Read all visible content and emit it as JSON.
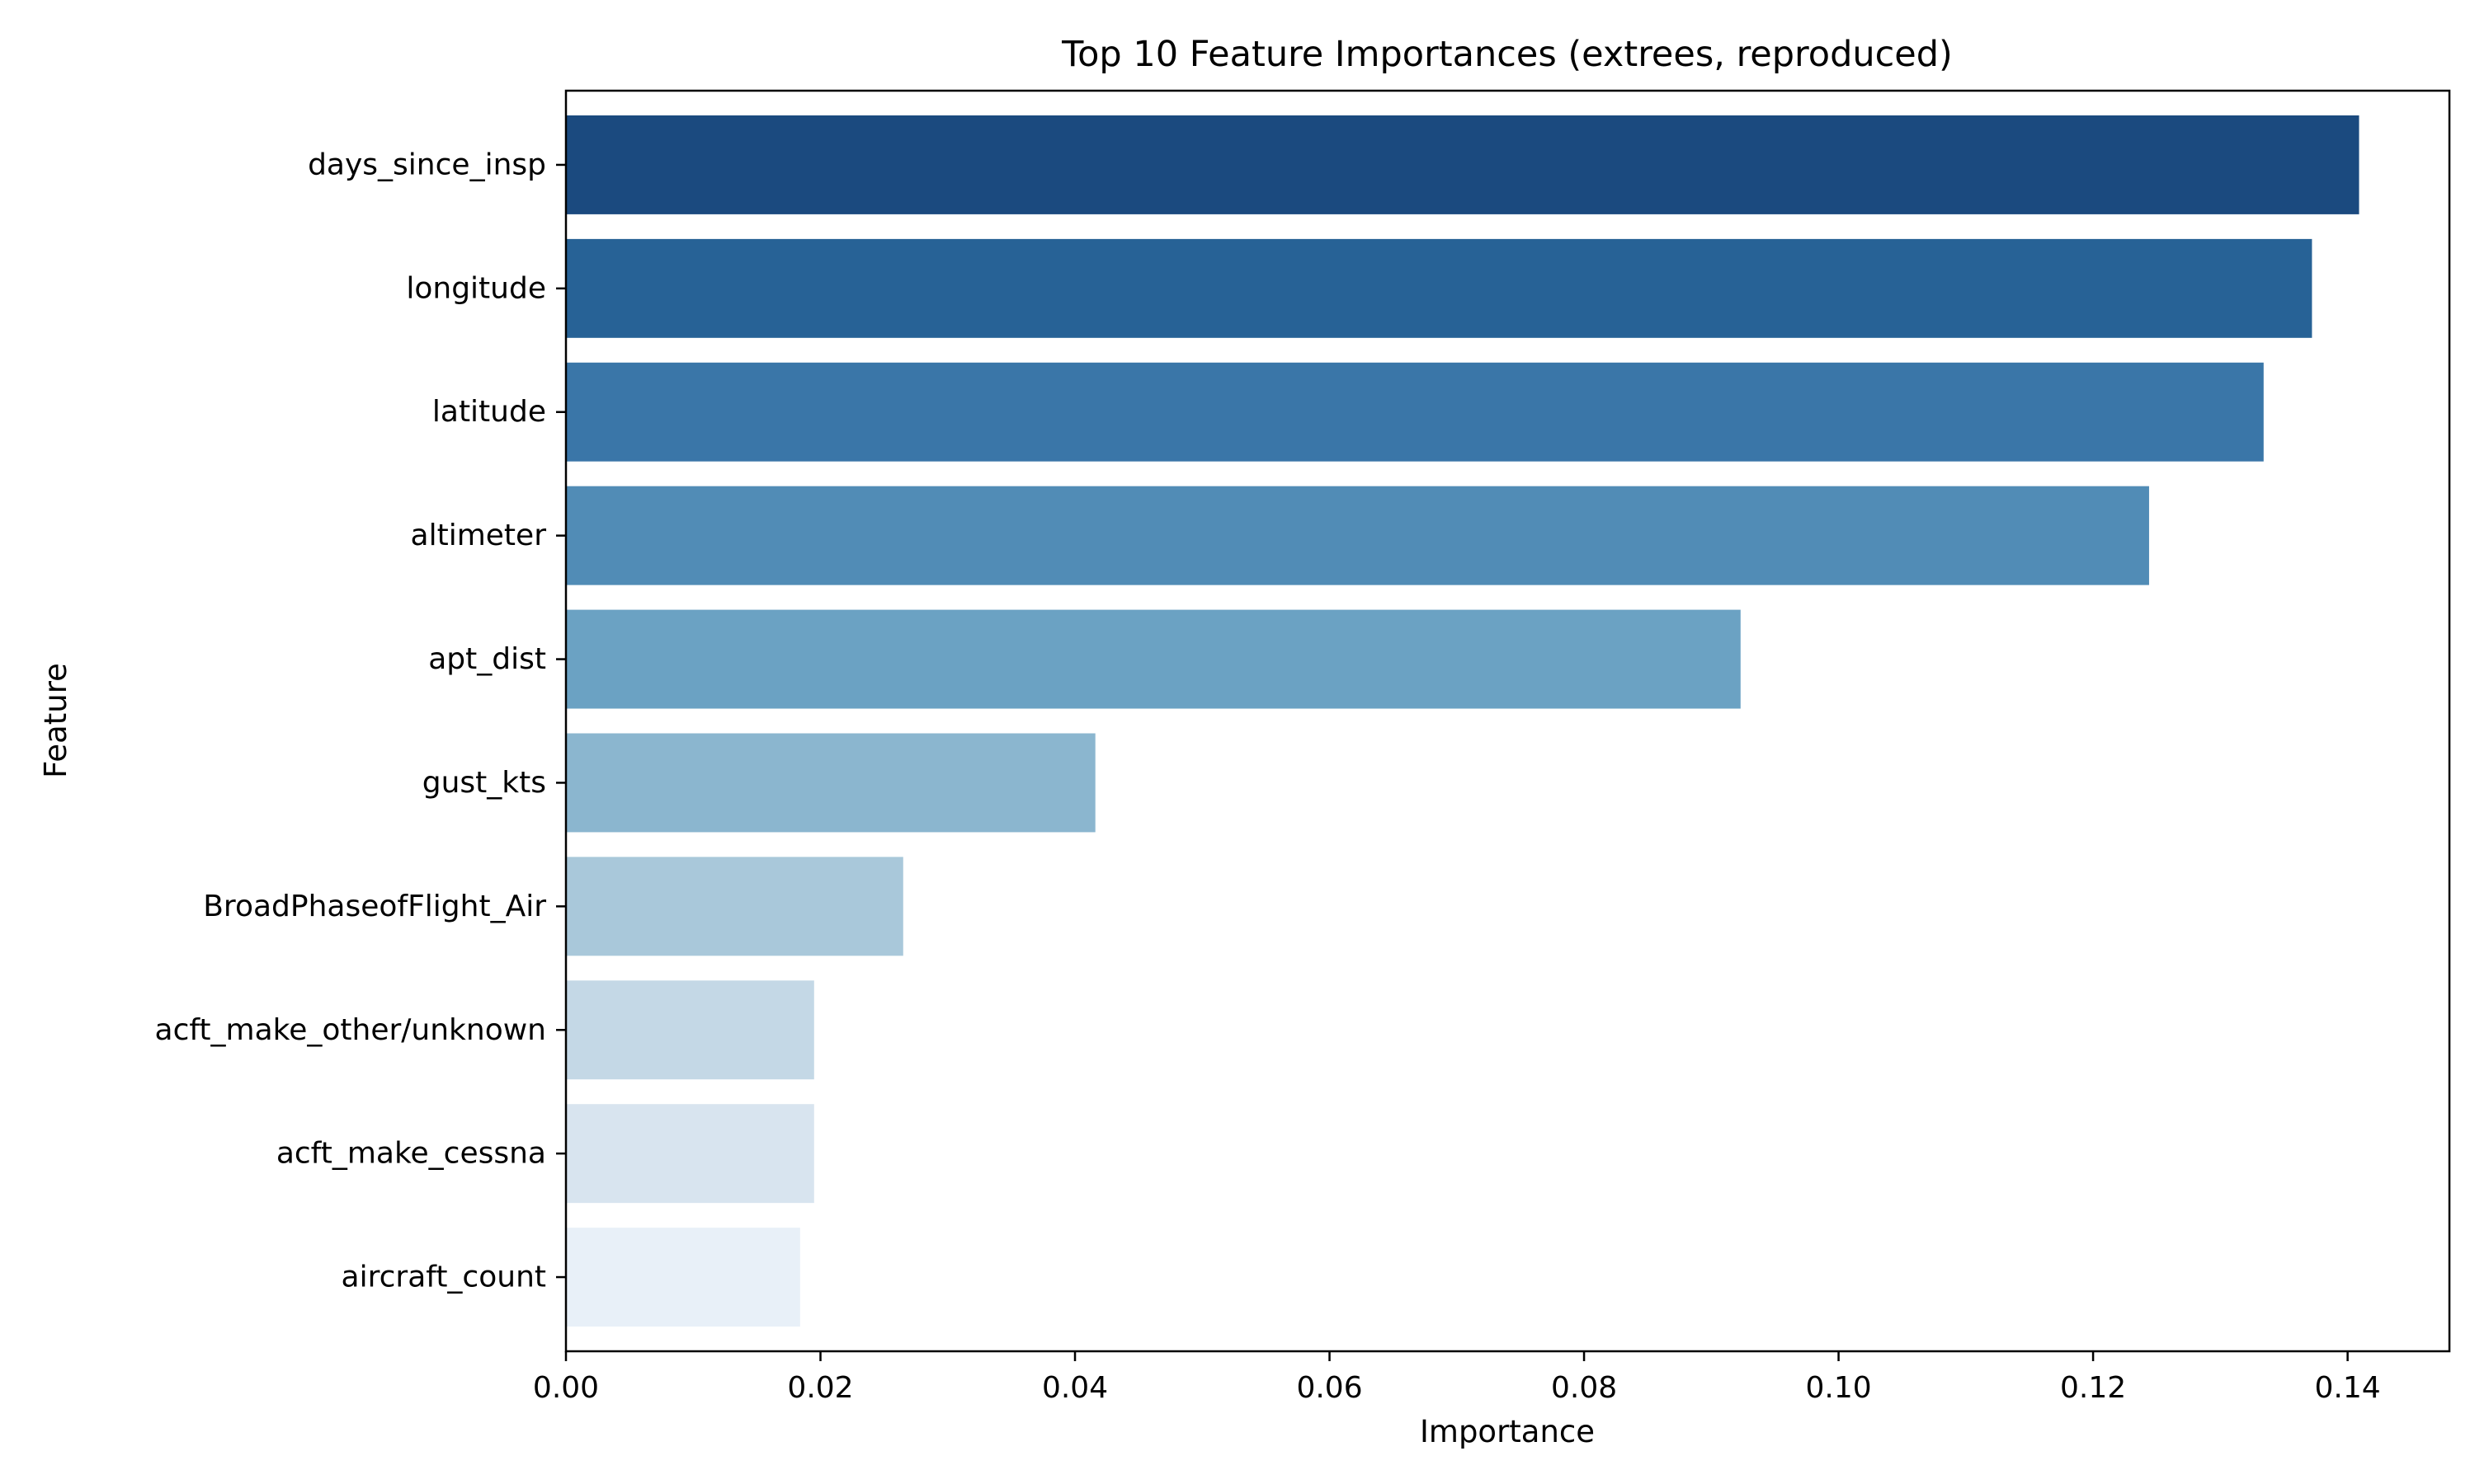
{
  "chart_data": {
    "type": "bar",
    "orientation": "horizontal",
    "title": "Top 10 Feature Importances (extrees, reproduced)",
    "xlabel": "Importance",
    "ylabel": "Feature",
    "xlim": [
      0,
      0.148
    ],
    "xticks": [
      0.0,
      0.02,
      0.04,
      0.06,
      0.08,
      0.1,
      0.12,
      0.14
    ],
    "xtick_labels": [
      "0.00",
      "0.02",
      "0.04",
      "0.06",
      "0.08",
      "0.10",
      "0.12",
      "0.14"
    ],
    "grid": false,
    "legend": null,
    "categories": [
      "days_since_insp",
      "longitude",
      "latitude",
      "altimeter",
      "apt_dist",
      "gust_kts",
      "BroadPhaseofFlight_Air",
      "acft_make_other/unknown",
      "acft_make_cessna",
      "aircraft_count"
    ],
    "values": [
      0.1409,
      0.1372,
      0.1334,
      0.1244,
      0.0923,
      0.0416,
      0.0265,
      0.0195,
      0.0195,
      0.0184
    ],
    "colors": [
      "#1b4a7f",
      "#276296",
      "#3a76a8",
      "#518cb6",
      "#6ba2c3",
      "#8bb6cf",
      "#a9c8da",
      "#c4d8e6",
      "#d8e4ef",
      "#e8f0f8"
    ]
  }
}
